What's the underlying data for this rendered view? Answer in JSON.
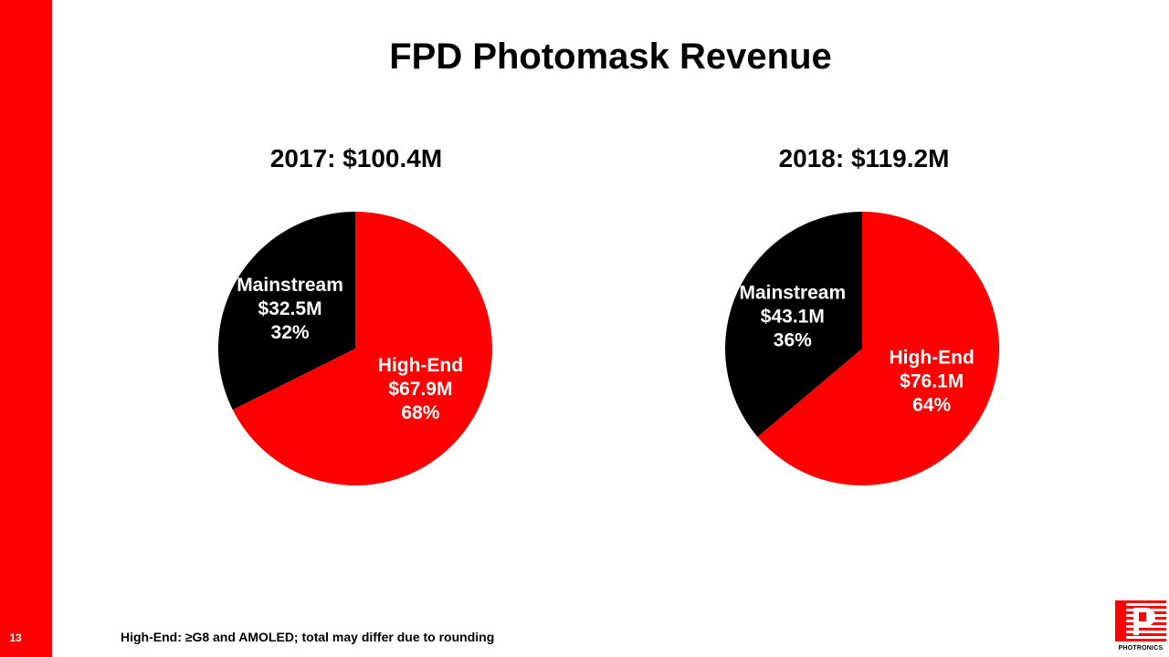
{
  "slide": {
    "title": "FPD Photomask Revenue",
    "page_number": "13",
    "footnote": "High-End: ≥G8 and AMOLED; total may differ due to rounding",
    "logo_text": "PHOTRONICS",
    "accent_color": "#ff0000"
  },
  "chart_data": [
    {
      "type": "pie",
      "title": "2017: $100.4M",
      "slices": [
        {
          "name": "High-End",
          "value": 67.9,
          "value_label": "$67.9M",
          "percent_label": "68%",
          "color": "#ff0000"
        },
        {
          "name": "Mainstream",
          "value": 32.5,
          "value_label": "$32.5M",
          "percent_label": "32%",
          "color": "#000000"
        }
      ]
    },
    {
      "type": "pie",
      "title": "2018: $119.2M",
      "slices": [
        {
          "name": "High-End",
          "value": 76.1,
          "value_label": "$76.1M",
          "percent_label": "64%",
          "color": "#ff0000"
        },
        {
          "name": "Mainstream",
          "value": 43.1,
          "value_label": "$43.1M",
          "percent_label": "36%",
          "color": "#000000"
        }
      ]
    }
  ]
}
